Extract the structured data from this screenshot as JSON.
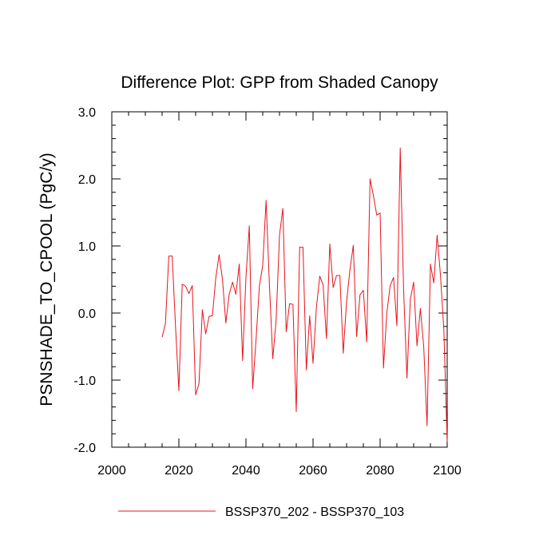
{
  "chart_data": {
    "type": "line",
    "title": "Difference Plot: GPP from Shaded Canopy",
    "xlabel": "",
    "ylabel": "PSNSHADE_TO_CPOOL  (PgC/y)",
    "xlim": [
      2000,
      2100
    ],
    "ylim": [
      -2.0,
      3.0
    ],
    "x_ticks": [
      2000,
      2020,
      2040,
      2060,
      2080,
      2100
    ],
    "x_tick_labels": [
      "2000",
      "2020",
      "2040",
      "2060",
      "2080",
      "2100"
    ],
    "y_ticks": [
      -2.0,
      -1.0,
      0.0,
      1.0,
      2.0,
      3.0
    ],
    "y_tick_labels": [
      "-2.0",
      "-1.0",
      "0.0",
      "1.0",
      "2.0",
      "3.0"
    ],
    "grid": false,
    "legend_position": "bottom",
    "series": [
      {
        "name": "BSSP370_202 - BSSP370_103",
        "color": "#e8141c",
        "x": [
          2015,
          2016,
          2017,
          2018,
          2019,
          2020,
          2021,
          2022,
          2023,
          2024,
          2025,
          2026,
          2027,
          2028,
          2029,
          2030,
          2031,
          2032,
          2033,
          2034,
          2035,
          2036,
          2037,
          2038,
          2039,
          2040,
          2041,
          2042,
          2043,
          2044,
          2045,
          2046,
          2047,
          2048,
          2049,
          2050,
          2051,
          2052,
          2053,
          2054,
          2055,
          2056,
          2057,
          2058,
          2059,
          2060,
          2061,
          2062,
          2063,
          2064,
          2065,
          2066,
          2067,
          2068,
          2069,
          2070,
          2071,
          2072,
          2073,
          2074,
          2075,
          2076,
          2077,
          2078,
          2079,
          2080,
          2081,
          2082,
          2083,
          2084,
          2085,
          2086,
          2087,
          2088,
          2089,
          2090,
          2091,
          2092,
          2093,
          2094,
          2095,
          2096,
          2097,
          2098,
          2099,
          2100
        ],
        "y": [
          -0.36,
          -0.15,
          0.85,
          0.85,
          -0.2,
          -1.16,
          0.43,
          0.4,
          0.29,
          0.41,
          -1.22,
          -1.05,
          0.05,
          -0.31,
          -0.05,
          -0.04,
          0.52,
          0.87,
          0.5,
          -0.15,
          0.28,
          0.46,
          0.28,
          0.73,
          -0.71,
          0.54,
          1.3,
          -1.13,
          -0.4,
          0.4,
          0.71,
          1.68,
          0.42,
          -0.68,
          -0.1,
          1.16,
          1.56,
          -0.28,
          0.14,
          0.13,
          -1.47,
          0.98,
          0.98,
          -0.85,
          -0.04,
          -0.75,
          0.08,
          0.55,
          0.42,
          -0.38,
          1.03,
          0.38,
          0.56,
          0.56,
          -0.6,
          0.17,
          0.64,
          1.01,
          -0.35,
          0.27,
          0.34,
          -0.43,
          2.0,
          1.75,
          1.46,
          1.49,
          -0.82,
          0.0,
          0.41,
          0.53,
          -0.19,
          2.46,
          0.35,
          -0.97,
          0.2,
          0.46,
          -0.49,
          0.07,
          -0.5,
          -1.68,
          0.73,
          0.45,
          1.16,
          0.56,
          -0.25,
          -1.92
        ]
      }
    ]
  }
}
